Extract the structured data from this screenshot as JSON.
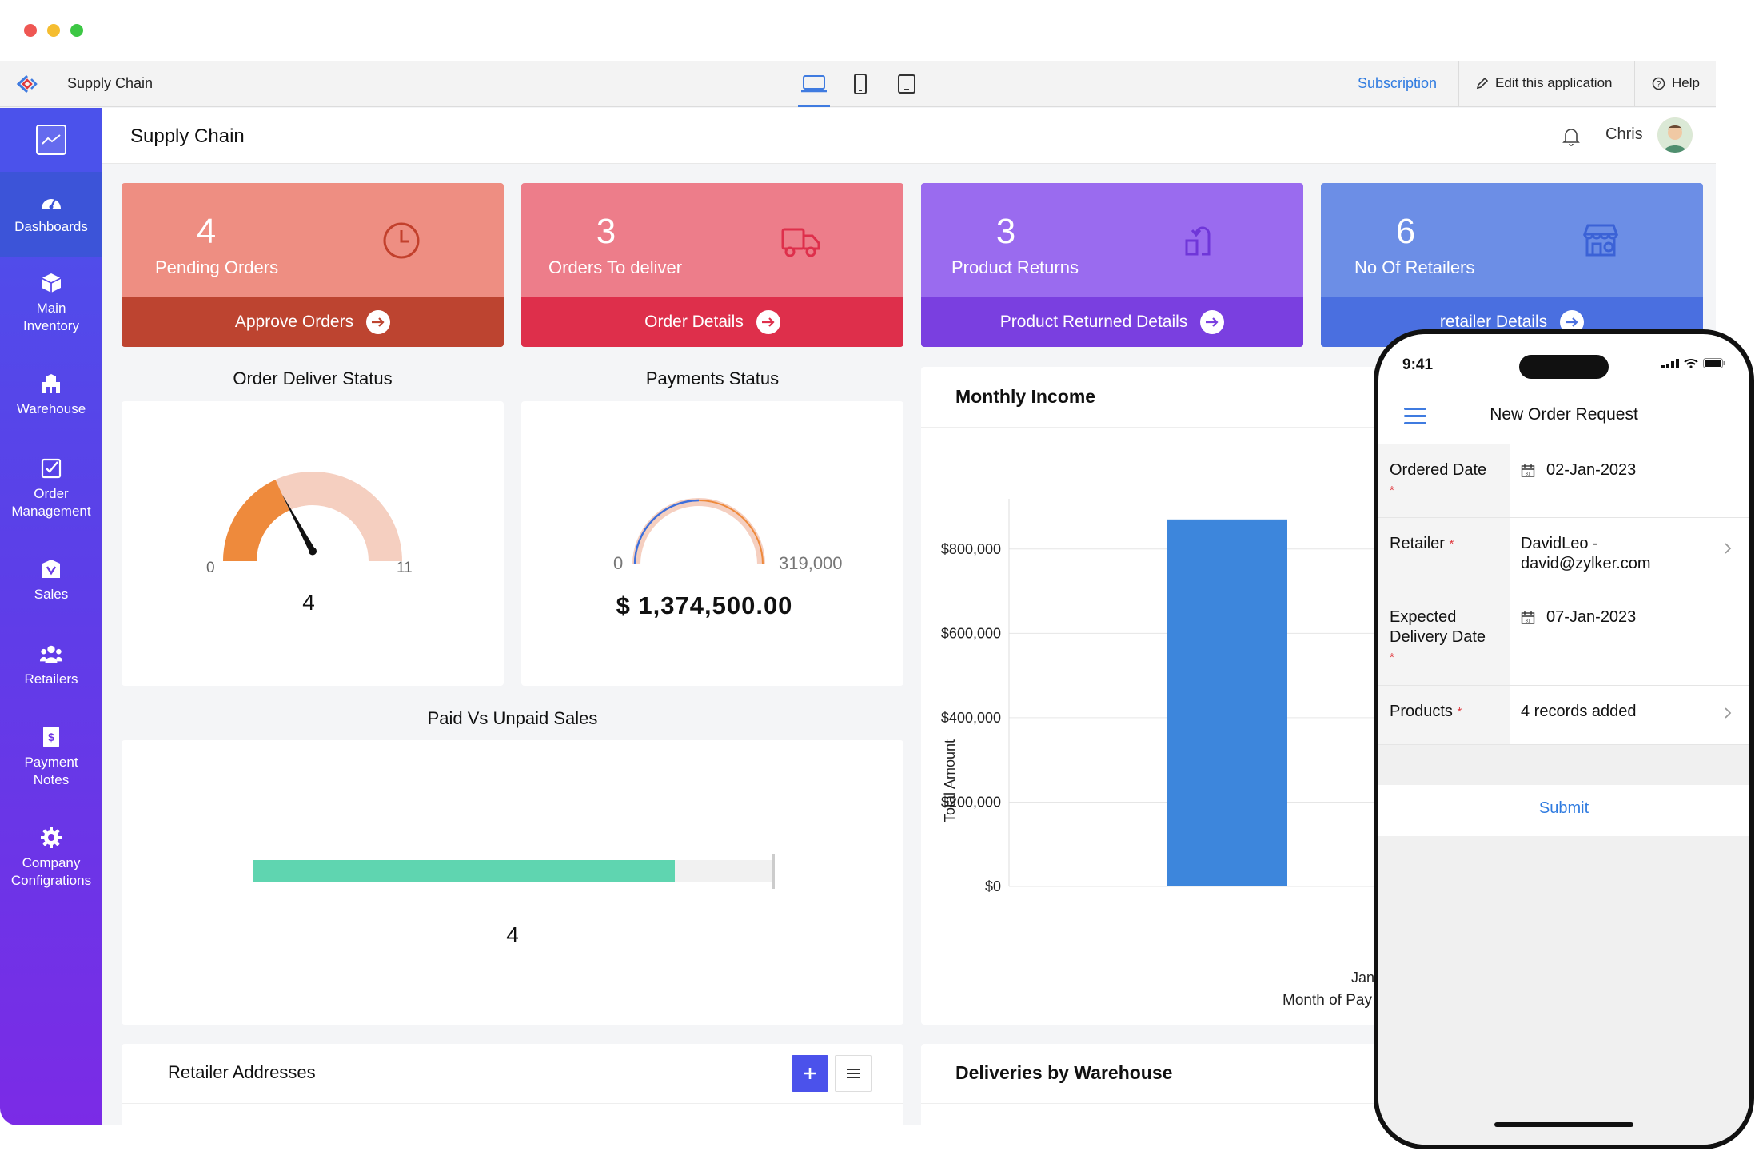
{
  "window": {
    "app_name": "Supply Chain",
    "subscription_label": "Subscription",
    "edit_label": "Edit this application",
    "help_label": "Help",
    "traffic_colors": [
      "#ef5753",
      "#f5bd30",
      "#3cc744"
    ]
  },
  "header": {
    "title": "Supply Chain",
    "user_name": "Chris"
  },
  "sidebar": {
    "items": [
      {
        "label": "Dashboards",
        "icon": "dashboard-icon"
      },
      {
        "label": "Main Inventory",
        "icon": "box-icon"
      },
      {
        "label": "Warehouse",
        "icon": "warehouse-icon"
      },
      {
        "label": "Order Management",
        "icon": "checklist-icon"
      },
      {
        "label": "Sales",
        "icon": "sales-icon"
      },
      {
        "label": "Retailers",
        "icon": "people-icon"
      },
      {
        "label": "Payment Notes",
        "icon": "payment-icon"
      },
      {
        "label": "Company Configrations",
        "icon": "gear-icon"
      }
    ]
  },
  "cards": [
    {
      "value": "4",
      "label": "Pending Orders",
      "action": "Approve Orders",
      "icon": "clock-icon",
      "top_color": "#ee8e82",
      "bottom_color": "#bd4430"
    },
    {
      "value": "3",
      "label": "Orders To deliver",
      "action": "Order Details",
      "icon": "truck-icon",
      "top_color": "#ed7d8a",
      "bottom_color": "#de2f4b"
    },
    {
      "value": "3",
      "label": "Product Returns",
      "action": "Product Returned Details",
      "icon": "return-icon",
      "top_color": "#9a6bef",
      "bottom_color": "#7a3fe0"
    },
    {
      "value": "6",
      "label": "No Of Retailers",
      "action": "retailer Details",
      "icon": "store-icon",
      "top_color": "#6c8ee6",
      "bottom_color": "#4a6fe0"
    }
  ],
  "order_deliver": {
    "title": "Order Deliver Status",
    "min": "0",
    "max": "11",
    "value": "4",
    "value_num": 4,
    "max_num": 11
  },
  "payments": {
    "title": "Payments Status",
    "min": "0",
    "max": "319,000",
    "total": "$ 1,374,500.00"
  },
  "paid_unpaid": {
    "title": "Paid Vs Unpaid Sales",
    "value": "4",
    "fill_fraction": 0.81
  },
  "monthly_income": {
    "title": "Monthly Income"
  },
  "chart_data": {
    "type": "bar",
    "title": "Monthly Income",
    "categories": [
      "Jan"
    ],
    "values": [
      870000
    ],
    "ylabel": "Total Amount",
    "xlabel": "Month of Pay",
    "ylim": [
      0,
      900000
    ],
    "yticks": [
      "$0",
      "$200,000",
      "$400,000",
      "$600,000",
      "$800,000"
    ],
    "ytick_values": [
      0,
      200000,
      400000,
      600000,
      800000
    ],
    "bar_color": "#3d86dc",
    "grid": true
  },
  "retailer_addresses": {
    "title": "Retailer Addresses"
  },
  "deliveries": {
    "title": "Deliveries by Warehouse"
  },
  "phone": {
    "time": "9:41",
    "title": "New Order Request",
    "rows": [
      {
        "label": "Ordered Date",
        "value": "02-Jan-2023"
      },
      {
        "label": "Retailer",
        "value_line1": "DavidLeo -",
        "value_line2": "david@zylker.com"
      },
      {
        "label_line1": "Expected",
        "label_line2": "Delivery Date",
        "value": "07-Jan-2023"
      },
      {
        "label": "Products",
        "value": "4 records added"
      }
    ],
    "submit": "Submit"
  }
}
